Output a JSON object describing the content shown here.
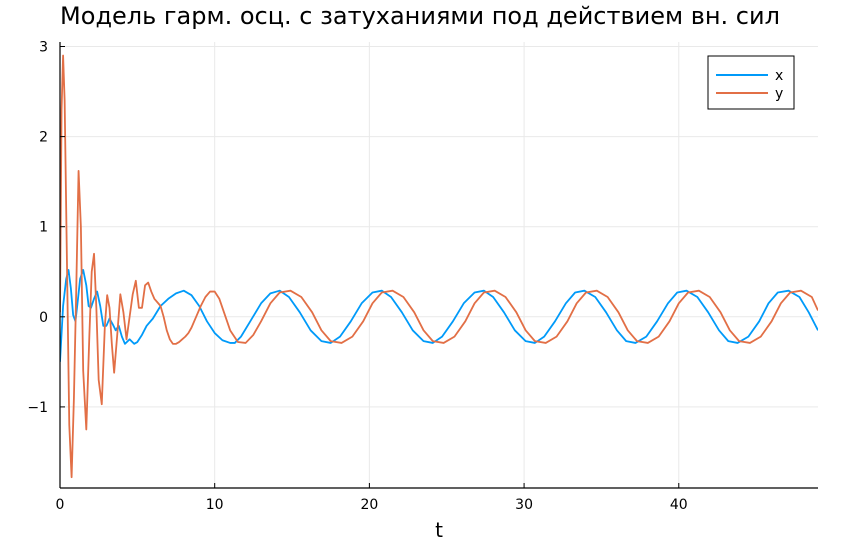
{
  "chart_data": {
    "type": "line",
    "title": "Модель гарм. осц. с затуханиями под действием вн. сил",
    "xlabel": "t",
    "ylabel": "",
    "xlim": [
      0,
      49
    ],
    "ylim": [
      -1.9,
      3.05
    ],
    "xticks": [
      0,
      10,
      20,
      30,
      40
    ],
    "xtick_labels": [
      "0",
      "10",
      "20",
      "30",
      "40"
    ],
    "yticks": [
      -1,
      0,
      1,
      2,
      3
    ],
    "ytick_labels": [
      "−1",
      "0",
      "1",
      "2",
      "3"
    ],
    "grid": true,
    "legend_position": "top-right",
    "series": [
      {
        "name": "x",
        "color": "#009af9",
        "x": [
          0,
          0.2,
          0.4,
          0.55,
          0.7,
          0.85,
          1.0,
          1.15,
          1.3,
          1.5,
          1.7,
          1.85,
          2.0,
          2.2,
          2.4,
          2.6,
          2.8,
          3.0,
          3.2,
          3.4,
          3.6,
          3.8,
          4.0,
          4.2,
          4.5,
          4.8,
          5.0,
          5.3,
          5.6,
          6.0,
          6.5,
          7.0,
          7.5,
          8.0,
          8.5,
          9.0,
          9.5,
          10.0,
          10.5,
          11.0,
          11.3,
          11.7,
          12.3,
          13.0,
          13.6,
          14.2,
          14.8,
          15.5,
          16.2,
          16.9,
          17.5,
          18.1,
          18.8,
          19.5,
          20.2,
          20.8,
          21.4,
          22.1,
          22.8,
          23.5,
          24.1,
          24.7,
          25.4,
          26.1,
          26.8,
          27.4,
          28.0,
          28.7,
          29.4,
          30.1,
          30.7,
          31.3,
          32.0,
          32.7,
          33.3,
          33.9,
          34.6,
          35.3,
          36.0,
          36.6,
          37.2,
          37.9,
          38.6,
          39.3,
          39.9,
          40.5,
          41.2,
          41.9,
          42.6,
          43.2,
          43.8,
          44.5,
          45.2,
          45.8,
          46.4,
          47.1,
          47.8,
          48.4,
          49.0
        ],
        "values": [
          -0.5,
          0.12,
          0.42,
          0.52,
          0.32,
          0.02,
          -0.05,
          0.18,
          0.42,
          0.52,
          0.35,
          0.12,
          0.1,
          0.2,
          0.28,
          0.12,
          -0.1,
          -0.1,
          -0.02,
          -0.08,
          -0.15,
          -0.1,
          -0.22,
          -0.3,
          -0.25,
          -0.3,
          -0.28,
          -0.2,
          -0.1,
          -0.02,
          0.12,
          0.2,
          0.26,
          0.29,
          0.24,
          0.12,
          -0.05,
          -0.18,
          -0.26,
          -0.29,
          -0.29,
          -0.22,
          -0.05,
          0.15,
          0.26,
          0.29,
          0.22,
          0.05,
          -0.15,
          -0.27,
          -0.29,
          -0.22,
          -0.05,
          0.15,
          0.27,
          0.29,
          0.22,
          0.05,
          -0.15,
          -0.27,
          -0.29,
          -0.22,
          -0.05,
          0.15,
          0.27,
          0.29,
          0.22,
          0.05,
          -0.15,
          -0.27,
          -0.29,
          -0.22,
          -0.05,
          0.15,
          0.27,
          0.29,
          0.22,
          0.05,
          -0.15,
          -0.27,
          -0.29,
          -0.22,
          -0.05,
          0.15,
          0.27,
          0.29,
          0.22,
          0.05,
          -0.15,
          -0.27,
          -0.29,
          -0.22,
          -0.05,
          0.15,
          0.27,
          0.29,
          0.22,
          0.05,
          -0.15
        ]
      },
      {
        "name": "y",
        "color": "#e26f46",
        "x": [
          0,
          0.1,
          0.2,
          0.3,
          0.45,
          0.6,
          0.75,
          0.9,
          1.05,
          1.2,
          1.35,
          1.5,
          1.7,
          1.9,
          2.05,
          2.2,
          2.35,
          2.5,
          2.7,
          2.9,
          3.05,
          3.2,
          3.35,
          3.5,
          3.7,
          3.9,
          4.1,
          4.3,
          4.5,
          4.7,
          4.9,
          5.1,
          5.3,
          5.5,
          5.7,
          5.9,
          6.1,
          6.3,
          6.5,
          6.7,
          6.9,
          7.1,
          7.3,
          7.5,
          7.7,
          7.9,
          8.1,
          8.3,
          8.5,
          8.8,
          9.1,
          9.4,
          9.7,
          10.0,
          10.3,
          10.6,
          11.0,
          11.5,
          12.0,
          12.5,
          13.0,
          13.6,
          14.2,
          14.9,
          15.6,
          16.3,
          16.9,
          17.5,
          18.2,
          18.9,
          19.6,
          20.2,
          20.8,
          21.5,
          22.2,
          22.9,
          23.5,
          24.1,
          24.8,
          25.5,
          26.2,
          26.8,
          27.4,
          28.1,
          28.8,
          29.5,
          30.1,
          30.7,
          31.4,
          32.1,
          32.8,
          33.4,
          34.0,
          34.7,
          35.4,
          36.1,
          36.7,
          37.3,
          38.0,
          38.7,
          39.4,
          40.0,
          40.6,
          41.3,
          42.0,
          42.7,
          43.3,
          43.9,
          44.6,
          45.3,
          46.0,
          46.6,
          47.2,
          47.9,
          48.6,
          49.0
        ],
        "values": [
          0.05,
          2.3,
          2.9,
          2.4,
          0.6,
          -1.2,
          -1.78,
          -0.9,
          0.3,
          1.62,
          1.0,
          -0.6,
          -1.25,
          -0.2,
          0.5,
          0.7,
          0.1,
          -0.7,
          -0.97,
          -0.1,
          0.24,
          0.1,
          -0.3,
          -0.62,
          -0.2,
          0.25,
          0.05,
          -0.25,
          0.0,
          0.25,
          0.4,
          0.1,
          0.1,
          0.35,
          0.38,
          0.28,
          0.2,
          0.16,
          0.12,
          0.0,
          -0.15,
          -0.25,
          -0.3,
          -0.3,
          -0.28,
          -0.25,
          -0.22,
          -0.18,
          -0.12,
          0.0,
          0.12,
          0.22,
          0.28,
          0.28,
          0.2,
          0.05,
          -0.15,
          -0.28,
          -0.29,
          -0.2,
          -0.05,
          0.15,
          0.27,
          0.29,
          0.22,
          0.05,
          -0.15,
          -0.27,
          -0.29,
          -0.22,
          -0.05,
          0.15,
          0.27,
          0.29,
          0.22,
          0.05,
          -0.15,
          -0.27,
          -0.29,
          -0.22,
          -0.05,
          0.15,
          0.27,
          0.29,
          0.22,
          0.05,
          -0.15,
          -0.27,
          -0.29,
          -0.22,
          -0.05,
          0.15,
          0.27,
          0.29,
          0.22,
          0.05,
          -0.15,
          -0.27,
          -0.29,
          -0.22,
          -0.05,
          0.15,
          0.27,
          0.29,
          0.22,
          0.05,
          -0.15,
          -0.27,
          -0.29,
          -0.22,
          -0.05,
          0.15,
          0.27,
          0.29,
          0.22,
          0.07
        ]
      }
    ]
  }
}
